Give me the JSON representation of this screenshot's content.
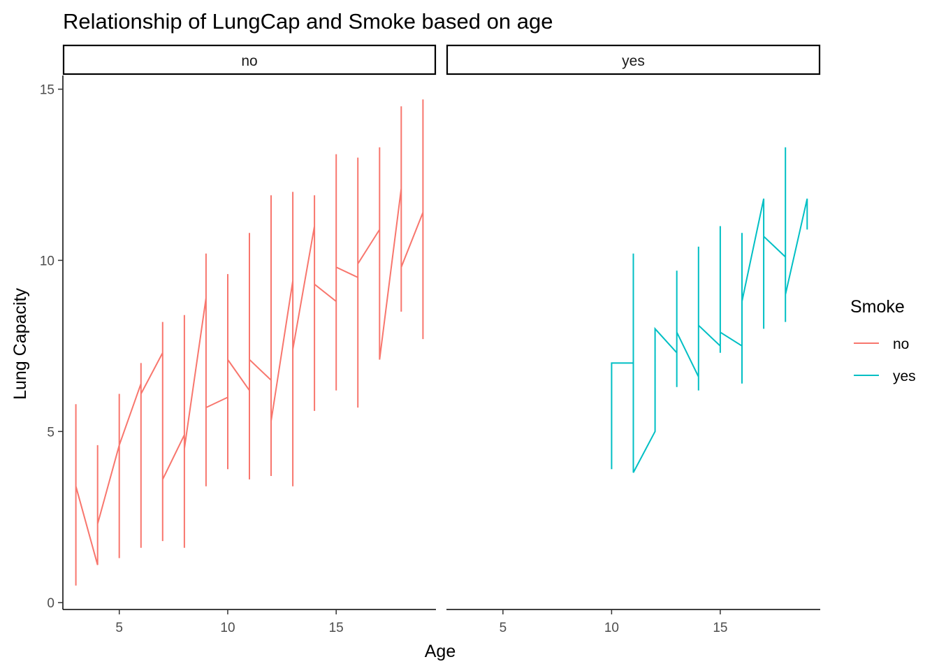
{
  "chart_data": {
    "type": "line",
    "title": "Relationship of LungCap and Smoke based on age",
    "xlabel": "Age",
    "ylabel": "Lung Capacity",
    "xlim": [
      2.4,
      19.6
    ],
    "ylim": [
      -0.2,
      15.4
    ],
    "x_ticks": [
      5,
      10,
      15
    ],
    "y_ticks": [
      0,
      5,
      10,
      15
    ],
    "grid": false,
    "legend": {
      "title": "Smoke",
      "placement": "right",
      "entries": [
        {
          "label": "no",
          "color": "#F8766D"
        },
        {
          "label": "yes",
          "color": "#00BFC4"
        }
      ]
    },
    "panels": [
      {
        "strip_label": "no",
        "series_label": "no",
        "color": "#F8766D",
        "path": [
          [
            3,
            0.5
          ],
          [
            3,
            5.8
          ],
          [
            3,
            3.4
          ],
          [
            4,
            1.1
          ],
          [
            4,
            4.6
          ],
          [
            4,
            2.3
          ],
          [
            5,
            4.6
          ],
          [
            5,
            1.3
          ],
          [
            5,
            6.1
          ],
          [
            5,
            4.6
          ],
          [
            6,
            6.4
          ],
          [
            6,
            1.6
          ],
          [
            6,
            7.0
          ],
          [
            6,
            6.1
          ],
          [
            7,
            7.3
          ],
          [
            7,
            1.8
          ],
          [
            7,
            8.2
          ],
          [
            7,
            3.6
          ],
          [
            8,
            4.9
          ],
          [
            8,
            1.6
          ],
          [
            8,
            8.4
          ],
          [
            8,
            4.5
          ],
          [
            9,
            8.9
          ],
          [
            9,
            3.4
          ],
          [
            9,
            10.2
          ],
          [
            9,
            5.7
          ],
          [
            10,
            6.0
          ],
          [
            10,
            3.9
          ],
          [
            10,
            9.6
          ],
          [
            10,
            7.1
          ],
          [
            11,
            6.2
          ],
          [
            11,
            3.6
          ],
          [
            11,
            10.8
          ],
          [
            11,
            7.1
          ],
          [
            12,
            6.5
          ],
          [
            12,
            3.7
          ],
          [
            12,
            11.9
          ],
          [
            12,
            5.3
          ],
          [
            13,
            9.4
          ],
          [
            13,
            3.4
          ],
          [
            13,
            12.0
          ],
          [
            13,
            7.4
          ],
          [
            14,
            11.0
          ],
          [
            14,
            5.6
          ],
          [
            14,
            11.9
          ],
          [
            14,
            9.3
          ],
          [
            15,
            8.8
          ],
          [
            15,
            6.2
          ],
          [
            15,
            13.1
          ],
          [
            15,
            9.8
          ],
          [
            16,
            9.5
          ],
          [
            16,
            5.7
          ],
          [
            16,
            13.0
          ],
          [
            16,
            9.9
          ],
          [
            17,
            10.9
          ],
          [
            17,
            7.2
          ],
          [
            17,
            13.3
          ],
          [
            17,
            7.1
          ],
          [
            18,
            12.1
          ],
          [
            18,
            8.5
          ],
          [
            18,
            14.5
          ],
          [
            18,
            9.8
          ],
          [
            19,
            11.4
          ],
          [
            19,
            7.7
          ],
          [
            19,
            14.7
          ],
          [
            19,
            11.5
          ]
        ]
      },
      {
        "strip_label": "yes",
        "series_label": "yes",
        "color": "#00BFC4",
        "path": [
          [
            10,
            3.9
          ],
          [
            10,
            7.0
          ],
          [
            11,
            7.0
          ],
          [
            11,
            10.2
          ],
          [
            11,
            3.8
          ],
          [
            12,
            5.0
          ],
          [
            12,
            8.0
          ],
          [
            13,
            7.3
          ],
          [
            13,
            9.7
          ],
          [
            13,
            6.3
          ],
          [
            13,
            7.9
          ],
          [
            14,
            6.6
          ],
          [
            14,
            6.2
          ],
          [
            14,
            10.4
          ],
          [
            14,
            8.1
          ],
          [
            15,
            7.5
          ],
          [
            15,
            7.3
          ],
          [
            15,
            11.0
          ],
          [
            15,
            7.9
          ],
          [
            16,
            7.5
          ],
          [
            16,
            6.4
          ],
          [
            16,
            10.8
          ],
          [
            16,
            8.8
          ],
          [
            17,
            11.8
          ],
          [
            17,
            8.0
          ],
          [
            17,
            11.7
          ],
          [
            17,
            10.7
          ],
          [
            18,
            10.1
          ],
          [
            18,
            8.2
          ],
          [
            18,
            13.3
          ],
          [
            18,
            9.0
          ],
          [
            19,
            11.8
          ],
          [
            19,
            10.9
          ]
        ]
      }
    ]
  }
}
